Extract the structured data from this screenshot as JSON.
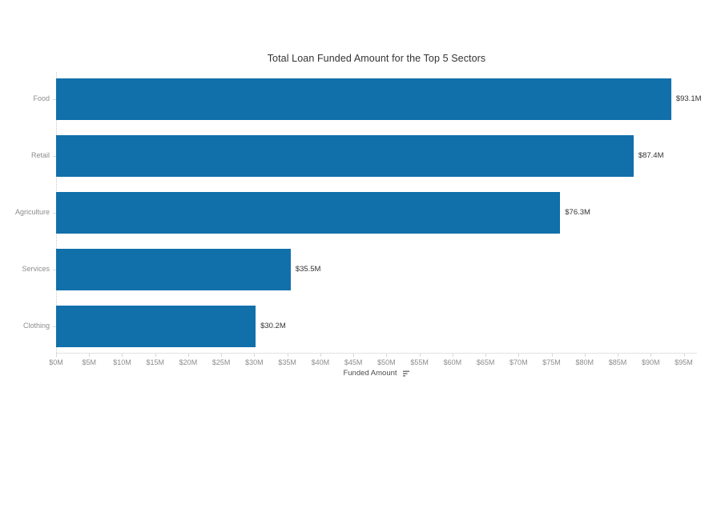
{
  "chart_data": {
    "type": "bar",
    "orientation": "horizontal",
    "title": "Total Loan Funded Amount for the Top 5 Sectors",
    "categories": [
      "Food",
      "Retail",
      "Agriculture",
      "Services",
      "Clothing"
    ],
    "values": [
      93.1,
      87.4,
      76.3,
      35.5,
      30.2
    ],
    "value_labels": [
      "$93.1M",
      "$87.4M",
      "$76.3M",
      "$35.5M",
      "$30.2M"
    ],
    "xlabel": "Funded Amount",
    "ylabel": "",
    "x_tick_values": [
      0,
      5,
      10,
      15,
      20,
      25,
      30,
      35,
      40,
      45,
      50,
      55,
      60,
      65,
      70,
      75,
      80,
      85,
      90,
      95
    ],
    "x_tick_labels": [
      "$0M",
      "$5M",
      "$10M",
      "$15M",
      "$20M",
      "$25M",
      "$30M",
      "$35M",
      "$40M",
      "$45M",
      "$50M",
      "$55M",
      "$60M",
      "$65M",
      "$70M",
      "$75M",
      "$80M",
      "$85M",
      "$90M",
      "$95M"
    ],
    "xlim": [
      0,
      97
    ],
    "bar_color": "#1170aa",
    "grid": "none",
    "legend": "none",
    "sort_indicator": "sort-descending-icon"
  }
}
